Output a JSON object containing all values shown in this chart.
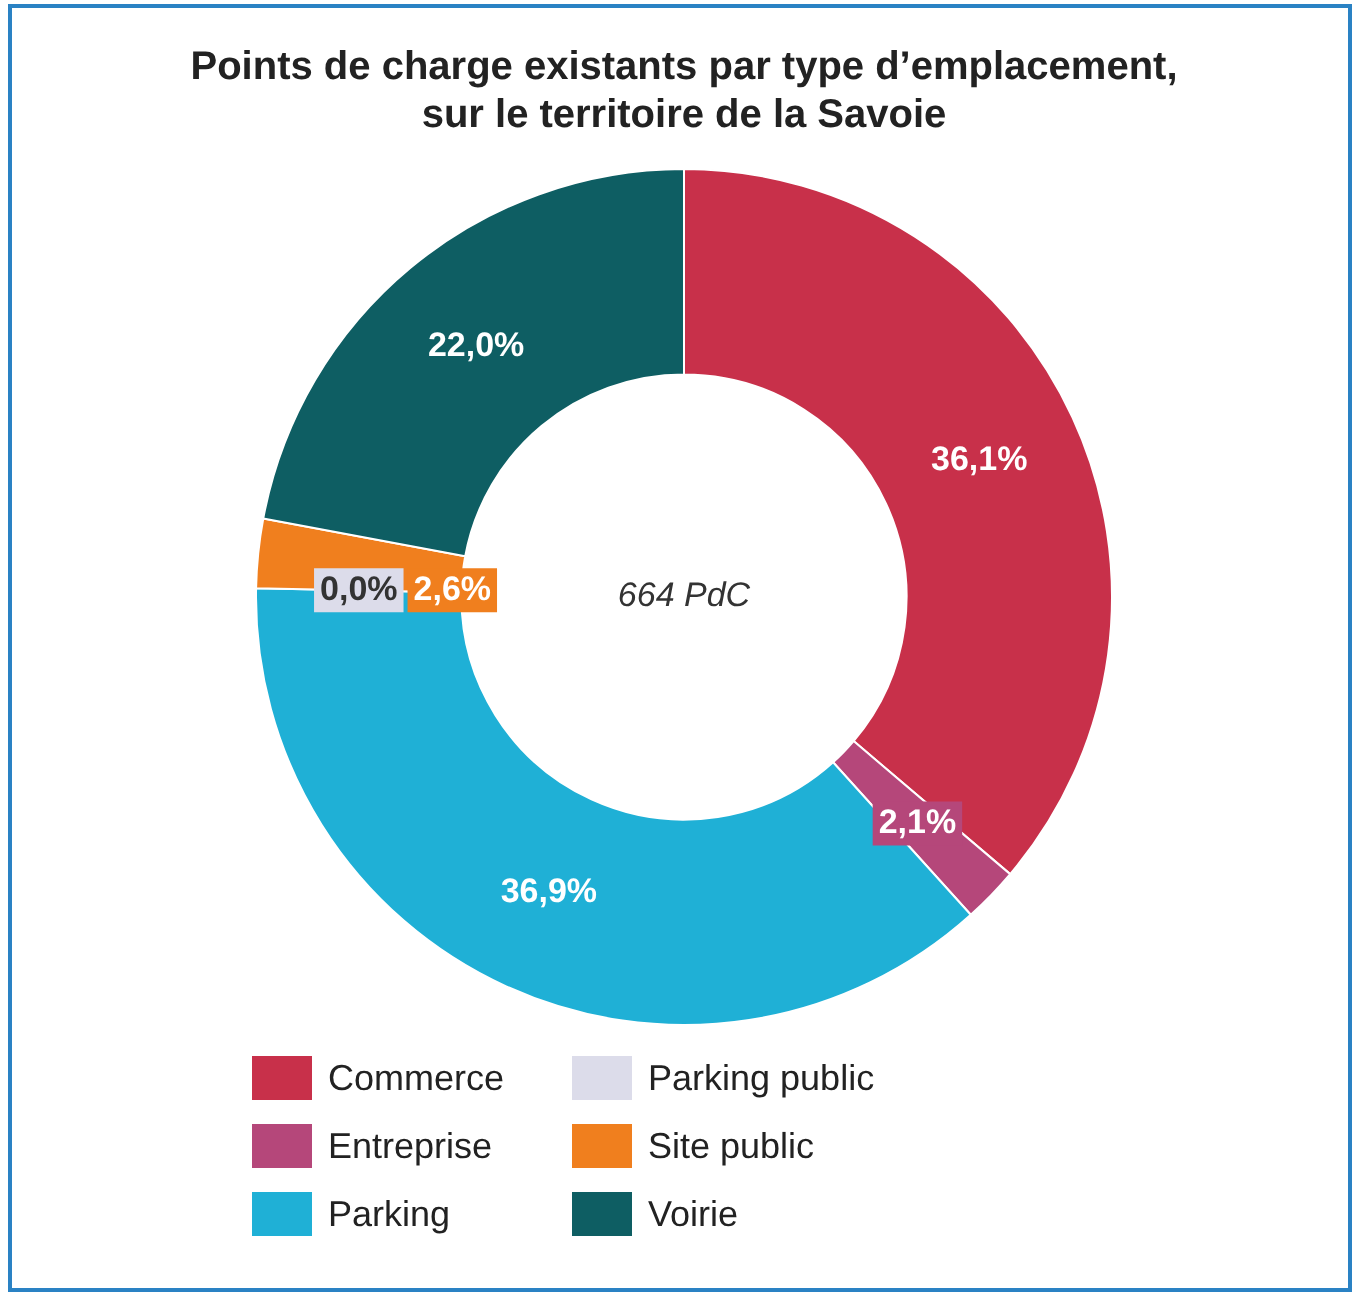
{
  "chart_data": {
    "type": "donut",
    "title": "Points de charge existants par type d’emplacement,\nsur le territoire de la Savoie",
    "categories": [
      "Commerce",
      "Entreprise",
      "Parking",
      "Parking public",
      "Site public",
      "Voirie"
    ],
    "values": [
      36.1,
      2.1,
      36.9,
      0.0,
      2.6,
      22.0
    ],
    "value_labels": [
      "36,1%",
      "2,1%",
      "36,9%",
      "0,0%",
      "2,6%",
      "22,0%"
    ],
    "colors": [
      "#c8304a",
      "#b5477a",
      "#1fb0d6",
      "#dcdcea",
      "#f07f1e",
      "#0e5e63"
    ],
    "annotations": [
      "664 PdC"
    ],
    "legend": "bottom"
  }
}
